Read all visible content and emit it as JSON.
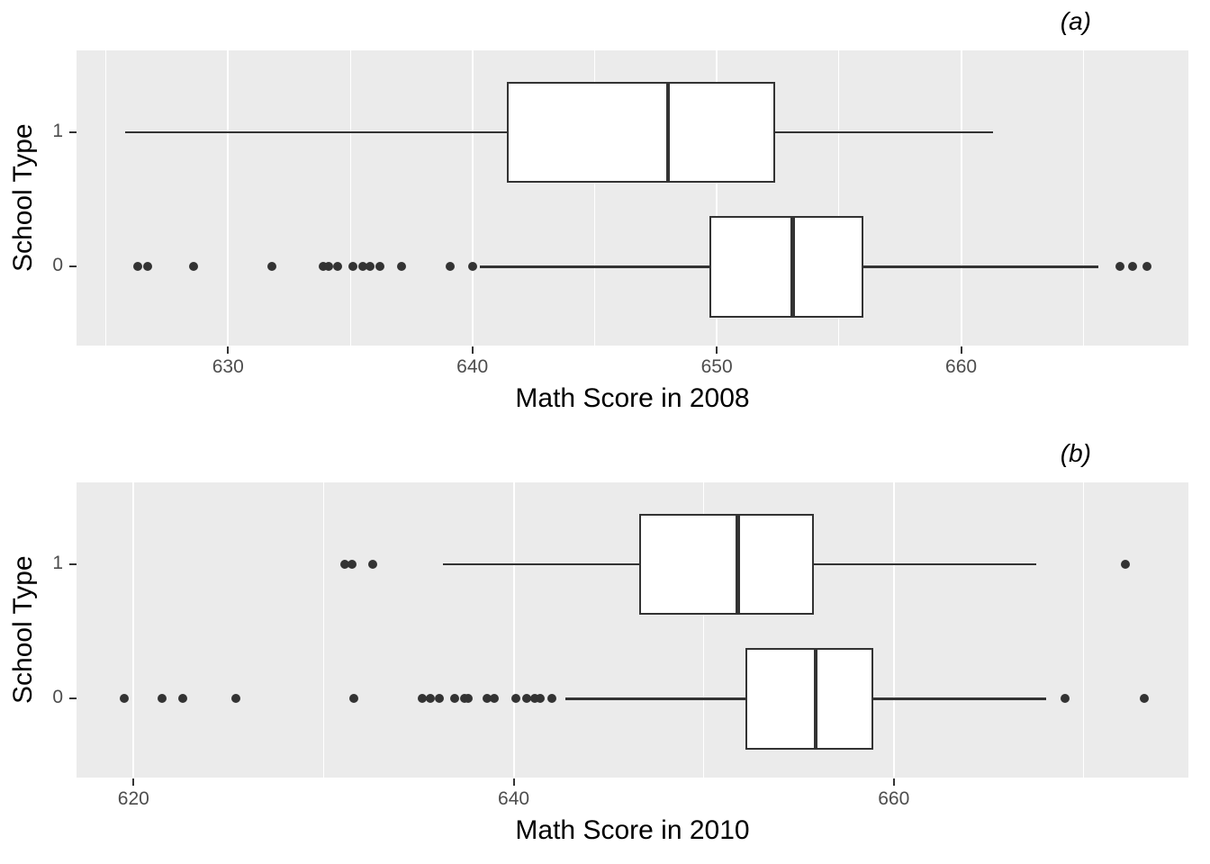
{
  "figure": {
    "background": "#FFFFFF",
    "panel_background": "#EBEBEB",
    "grid_color": "#FFFFFF",
    "box_stroke_color": "#333333",
    "tick_label_color": "#4D4D4D",
    "axis_title_color": "#000000"
  },
  "chart_data": [
    {
      "type": "boxplot",
      "orientation": "horizontal",
      "tag": "(a)",
      "xlabel": "Math Score in 2008",
      "ylabel": "School Type",
      "xlim": [
        623.8,
        669.3
      ],
      "x_major_ticks": [
        630,
        640,
        650,
        660
      ],
      "x_minor_ticks": [
        625,
        635,
        645,
        655,
        665
      ],
      "grid": true,
      "categories": [
        "1",
        "0"
      ],
      "series": [
        {
          "group": "1",
          "whisker_low": 625.8,
          "q1": 641.4,
          "median": 648.0,
          "q3": 652.4,
          "whisker_high": 661.3,
          "outliers": []
        },
        {
          "group": "0",
          "whisker_low": 640.3,
          "q1": 649.7,
          "median": 653.1,
          "q3": 656.0,
          "whisker_high": 665.6,
          "outliers": [
            626.3,
            626.7,
            628.6,
            631.8,
            633.9,
            634.1,
            634.5,
            635.1,
            635.5,
            635.8,
            636.2,
            637.1,
            639.1,
            640.0,
            666.5,
            667.0,
            667.6
          ]
        }
      ]
    },
    {
      "type": "boxplot",
      "orientation": "horizontal",
      "tag": "(b)",
      "xlabel": "Math Score in 2010",
      "ylabel": "School Type",
      "xlim": [
        617.0,
        675.5
      ],
      "x_major_ticks": [
        620,
        640,
        660
      ],
      "x_minor_ticks": [
        630,
        650,
        670
      ],
      "grid": true,
      "categories": [
        "1",
        "0"
      ],
      "series": [
        {
          "group": "1",
          "whisker_low": 636.3,
          "q1": 646.6,
          "median": 651.8,
          "q3": 655.8,
          "whisker_high": 667.5,
          "outliers": [
            631.1,
            631.5,
            632.6,
            672.2
          ]
        },
        {
          "group": "0",
          "whisker_low": 642.7,
          "q1": 652.2,
          "median": 655.9,
          "q3": 658.9,
          "whisker_high": 668.0,
          "outliers": [
            619.5,
            621.5,
            622.6,
            625.4,
            631.6,
            635.2,
            635.6,
            636.1,
            636.9,
            637.4,
            637.6,
            638.6,
            639.0,
            640.1,
            640.7,
            641.1,
            641.4,
            642.0,
            669.0,
            673.2
          ]
        }
      ]
    }
  ]
}
